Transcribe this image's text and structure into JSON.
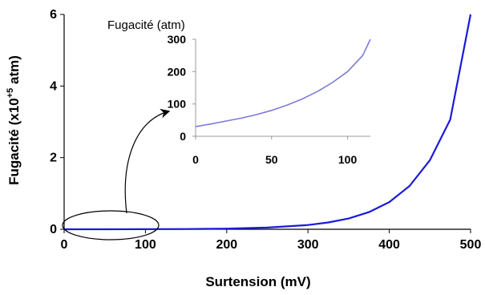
{
  "chart_data": [
    {
      "type": "line",
      "title": "",
      "xlabel": "Surtension  (mV)",
      "ylabel_main": "Fugacité (x10",
      "ylabel_sup": "+5",
      "ylabel_end": " atm)",
      "xlim": [
        0,
        500
      ],
      "ylim": [
        0,
        6
      ],
      "x_ticks": [
        "0",
        "100",
        "200",
        "300",
        "400",
        "500"
      ],
      "y_ticks": [
        "0",
        "2",
        "4",
        "6"
      ],
      "grid": false,
      "legend": "none",
      "series": [
        {
          "color": "#1a1adb",
          "x": [
            0,
            50,
            100,
            150,
            200,
            250,
            300,
            325,
            350,
            375,
            400,
            425,
            450,
            475,
            500
          ],
          "y": [
            0.0003,
            0.001,
            0.003,
            0.007,
            0.018,
            0.046,
            0.118,
            0.19,
            0.3,
            0.48,
            0.76,
            1.21,
            1.93,
            3.06,
            6.0
          ]
        }
      ]
    },
    {
      "type": "line",
      "title": "Fugacité (atm)",
      "xlabel": "",
      "ylabel": "",
      "xlim": [
        0,
        115
      ],
      "ylim": [
        0,
        300
      ],
      "x_ticks": [
        "0",
        "50",
        "100"
      ],
      "y_ticks": [
        "0",
        "100",
        "200",
        "300"
      ],
      "grid": false,
      "legend": "none",
      "series": [
        {
          "color": "#7b7bd9",
          "x": [
            0,
            10,
            20,
            30,
            40,
            50,
            60,
            70,
            80,
            90,
            100,
            110,
            115
          ],
          "y": [
            30,
            38,
            47,
            56,
            67,
            80,
            96,
            115,
            138,
            166,
            200,
            250,
            300
          ]
        }
      ]
    }
  ]
}
